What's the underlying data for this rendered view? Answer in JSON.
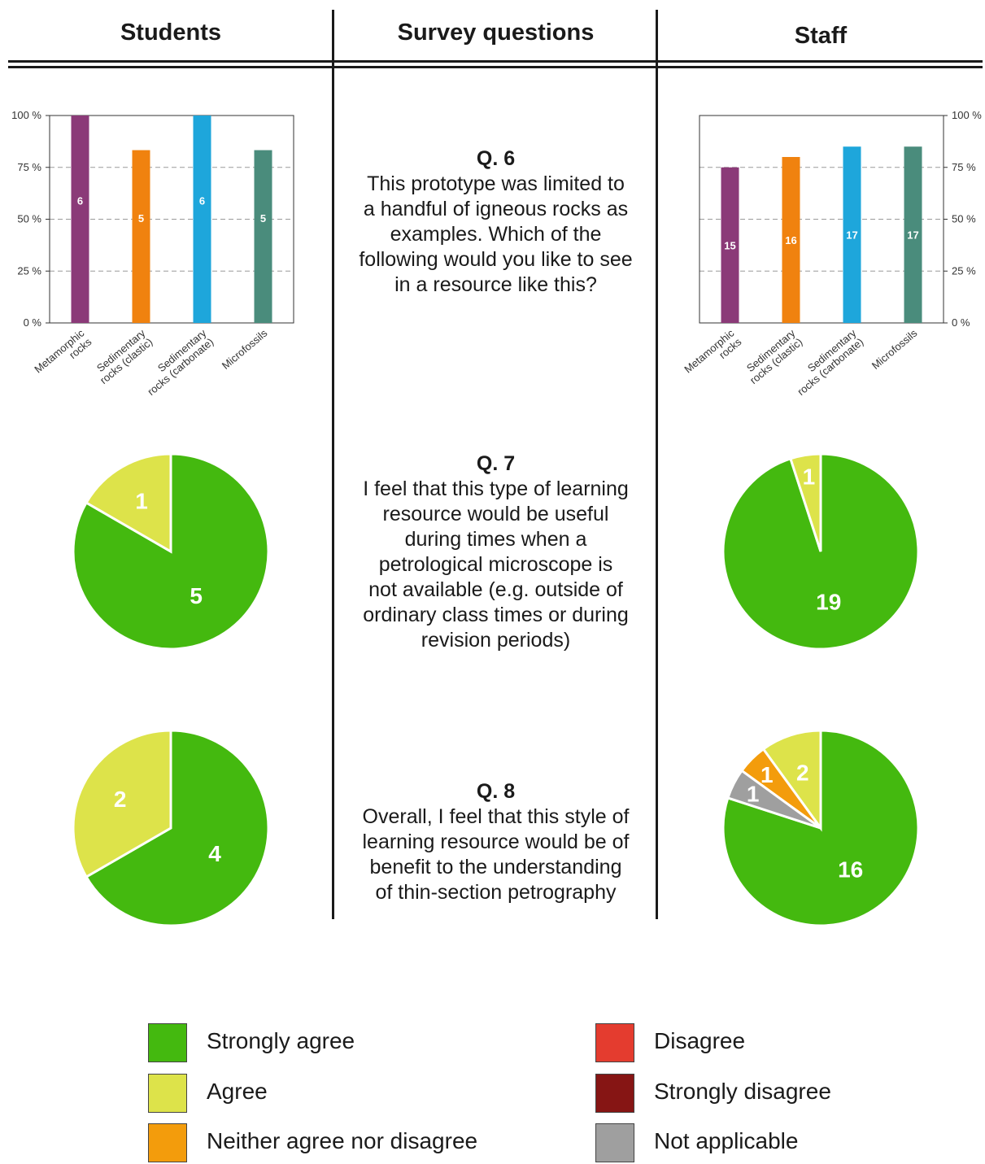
{
  "headers": {
    "students": "Students",
    "questions": "Survey questions",
    "staff": "Staff"
  },
  "questions": [
    {
      "id": "q6",
      "title": "Q. 6",
      "lines": [
        "This prototype was limited to",
        "a handful of igneous rocks as",
        "examples. Which of the",
        "following would you like to see",
        "in a resource like this?"
      ]
    },
    {
      "id": "q7",
      "title": "Q. 7",
      "lines": [
        "I feel that this type of learning",
        "resource would be useful",
        "during times when a",
        "petrological microscope is",
        "not available (e.g. outside of",
        "ordinary class times or during",
        "revision periods)"
      ]
    },
    {
      "id": "q8",
      "title": "Q. 8",
      "lines": [
        "Overall, I feel that this style of",
        "learning resource would be of",
        "benefit to the understanding",
        "of thin-section petrography"
      ]
    }
  ],
  "legend": [
    {
      "key": "strongly_agree",
      "label": "Strongly agree",
      "color": "#44b90f"
    },
    {
      "key": "agree",
      "label": "Agree",
      "color": "#dde34a"
    },
    {
      "key": "neither",
      "label": "Neither agree nor disagree",
      "color": "#f39c0c"
    },
    {
      "key": "disagree",
      "label": "Disagree",
      "color": "#e43c2f"
    },
    {
      "key": "strongly_disagree",
      "label": "Strongly disagree",
      "color": "#861514"
    },
    {
      "key": "not_applicable",
      "label": "Not applicable",
      "color": "#9f9f9f"
    }
  ],
  "chart_data": [
    {
      "id": "students_q6",
      "type": "bar",
      "group": "Students",
      "question": "Q. 6",
      "categories": [
        "Metamorphic rocks",
        "Sedimentary rocks (clastic)",
        "Sedimentary rocks (carbonate)",
        "Microfossils"
      ],
      "category_label_lines": [
        [
          "Metamorphic",
          "rocks"
        ],
        [
          "Sedimentary",
          "rocks (clastic)"
        ],
        [
          "Sedimentary",
          "rocks (carbonate)"
        ],
        [
          "Microfossils"
        ]
      ],
      "values": [
        100,
        83.3,
        100,
        83.3
      ],
      "data_labels": [
        "6",
        "5",
        "6",
        "5"
      ],
      "colors": [
        "#8b3a78",
        "#f0820f",
        "#1ea6db",
        "#4a8c7c"
      ],
      "yticks": [
        "0 %",
        "25 %",
        "50 %",
        "75 %",
        "100 %"
      ],
      "ylim": [
        0,
        100
      ],
      "grid": true,
      "y_axis_side": "left"
    },
    {
      "id": "staff_q6",
      "type": "bar",
      "group": "Staff",
      "question": "Q. 6",
      "categories": [
        "Metamorphic rocks",
        "Sedimentary rocks (clastic)",
        "Sedimentary rocks (carbonate)",
        "Microfossils"
      ],
      "category_label_lines": [
        [
          "Metamorphic",
          "rocks"
        ],
        [
          "Sedimentary",
          "rocks (clastic)"
        ],
        [
          "Sedimentary",
          "rocks (carbonate)"
        ],
        [
          "Microfossils"
        ]
      ],
      "values": [
        75,
        80,
        85,
        85
      ],
      "data_labels": [
        "15",
        "16",
        "17",
        "17"
      ],
      "colors": [
        "#8b3a78",
        "#f0820f",
        "#1ea6db",
        "#4a8c7c"
      ],
      "yticks": [
        "0 %",
        "25 %",
        "50 %",
        "75 %",
        "100 %"
      ],
      "ylim": [
        0,
        100
      ],
      "grid": true,
      "y_axis_side": "right"
    },
    {
      "id": "students_q7",
      "type": "pie",
      "group": "Students",
      "question": "Q. 7",
      "slices": [
        {
          "category": "Strongly agree",
          "value": 5,
          "label": "5"
        },
        {
          "category": "Agree",
          "value": 1,
          "label": "1"
        }
      ]
    },
    {
      "id": "staff_q7",
      "type": "pie",
      "group": "Staff",
      "question": "Q. 7",
      "slices": [
        {
          "category": "Strongly agree",
          "value": 19,
          "label": "19"
        },
        {
          "category": "Agree",
          "value": 1,
          "label": "1"
        }
      ]
    },
    {
      "id": "students_q8",
      "type": "pie",
      "group": "Students",
      "question": "Q. 8",
      "slices": [
        {
          "category": "Strongly agree",
          "value": 4,
          "label": "4"
        },
        {
          "category": "Agree",
          "value": 2,
          "label": "2"
        }
      ]
    },
    {
      "id": "staff_q8",
      "type": "pie",
      "group": "Staff",
      "question": "Q. 8",
      "slices": [
        {
          "category": "Strongly agree",
          "value": 16,
          "label": "16"
        },
        {
          "category": "Agree",
          "value": 2,
          "label": "2"
        },
        {
          "category": "Neither agree nor disagree",
          "value": 1,
          "label": "1"
        },
        {
          "category": "Not applicable",
          "value": 1,
          "label": "1"
        }
      ]
    }
  ]
}
